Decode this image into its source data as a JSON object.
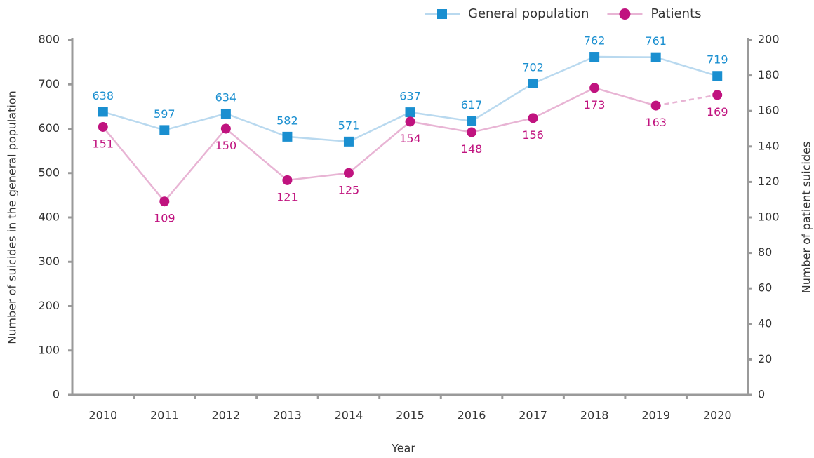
{
  "chart_data": {
    "type": "line",
    "x_label": "Year",
    "y_label": "Number of suicides in the general population",
    "y2_label": "Number of patient suicides",
    "categories": [
      "2010",
      "2011",
      "2012",
      "2013",
      "2014",
      "2015",
      "2016",
      "2017",
      "2018",
      "2019",
      "2020"
    ],
    "series": [
      {
        "name": "General population",
        "color": "#1a8fd0",
        "line_color": "#b9d9ef",
        "marker": "square",
        "values": [
          638,
          597,
          634,
          582,
          571,
          637,
          617,
          702,
          762,
          761,
          719
        ]
      },
      {
        "name": "Patients",
        "color": "#c0137f",
        "line_color": "#e8b4d4",
        "marker": "circle",
        "axis": "y2",
        "dashed_last_segment": true,
        "values": [
          151,
          109,
          150,
          121,
          125,
          154,
          148,
          156,
          173,
          163,
          169
        ]
      }
    ],
    "ylim": [
      0,
      800
    ],
    "yticks": [
      0,
      100,
      200,
      300,
      400,
      500,
      600,
      700,
      800
    ],
    "y2lim": [
      0,
      200
    ],
    "y2ticks": [
      0,
      20,
      40,
      60,
      80,
      100,
      120,
      140,
      160,
      180,
      200
    ],
    "legend": "top-right"
  }
}
